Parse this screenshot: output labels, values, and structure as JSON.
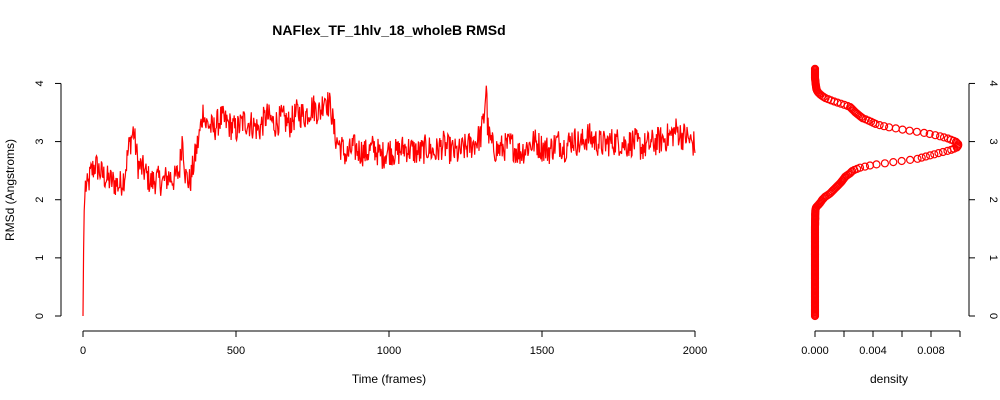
{
  "chart_data": [
    {
      "type": "line",
      "title": "NAFlex_TF_1hlv_18_wholeB RMSd",
      "xlabel": "Time (frames)",
      "ylabel": "RMSd (Angstroms)",
      "xlim": [
        0,
        2000
      ],
      "ylim": [
        0,
        4.3
      ],
      "x_ticks": [
        "0",
        "500",
        "1000",
        "1500",
        "2000"
      ],
      "y_ticks": [
        "0",
        "1",
        "2",
        "3",
        "4"
      ],
      "series": [
        {
          "color": "#ff0000",
          "x": [
            0,
            3,
            8,
            15,
            25,
            40,
            60,
            80,
            100,
            120,
            135,
            150,
            165,
            180,
            200,
            220,
            240,
            260,
            280,
            300,
            315,
            325,
            335,
            350,
            365,
            380,
            395,
            400,
            410,
            425,
            450,
            475,
            500,
            525,
            550,
            575,
            600,
            625,
            650,
            675,
            700,
            725,
            750,
            775,
            790,
            800,
            810,
            820,
            830,
            845,
            860,
            870,
            880,
            900,
            925,
            950,
            975,
            1000,
            1025,
            1050,
            1075,
            1100,
            1125,
            1150,
            1175,
            1200,
            1225,
            1250,
            1275,
            1300,
            1310,
            1318,
            1322,
            1326,
            1332,
            1340,
            1355,
            1375,
            1400,
            1425,
            1450,
            1475,
            1500,
            1525,
            1550,
            1575,
            1600,
            1625,
            1650,
            1675,
            1700,
            1725,
            1750,
            1775,
            1800,
            1825,
            1850,
            1875,
            1900,
            1920,
            1940,
            1955,
            1970,
            1985,
            2000
          ],
          "values": [
            0.0,
            1.7,
            2.25,
            2.2,
            2.45,
            2.6,
            2.45,
            2.35,
            2.3,
            2.25,
            2.4,
            2.9,
            3.2,
            2.6,
            2.5,
            2.3,
            2.35,
            2.3,
            2.4,
            2.35,
            2.5,
            3.1,
            2.4,
            2.3,
            2.7,
            3.1,
            3.6,
            3.3,
            3.3,
            3.2,
            3.4,
            3.3,
            3.2,
            3.35,
            3.3,
            3.2,
            3.45,
            3.3,
            3.4,
            3.3,
            3.5,
            3.45,
            3.6,
            3.5,
            3.8,
            3.65,
            3.6,
            3.2,
            3.0,
            2.9,
            2.75,
            2.8,
            2.9,
            2.85,
            2.8,
            2.9,
            2.75,
            2.85,
            2.8,
            2.9,
            2.85,
            2.8,
            2.9,
            2.8,
            2.95,
            2.85,
            2.8,
            2.9,
            2.95,
            3.1,
            3.4,
            4.0,
            3.3,
            3.1,
            3.0,
            2.9,
            2.85,
            2.9,
            2.95,
            2.8,
            2.9,
            3.0,
            2.9,
            2.85,
            3.0,
            2.9,
            3.05,
            2.95,
            3.1,
            3.0,
            2.95,
            3.0,
            3.0,
            2.95,
            3.0,
            2.9,
            2.95,
            3.0,
            3.05,
            3.1,
            3.2,
            3.1,
            3.1,
            3.0,
            2.95
          ]
        }
      ]
    },
    {
      "type": "scatter",
      "xlabel": "density",
      "ylabel": "",
      "xlim": [
        0,
        0.01
      ],
      "ylim": [
        0,
        4.3
      ],
      "x_ticks": [
        "0.000",
        "0.004",
        "0.008"
      ],
      "y_ticks": [
        "0",
        "1",
        "2",
        "3",
        "4"
      ],
      "series": [
        {
          "color": "#ff0000",
          "marker": "open-circle",
          "x": [
            0.0,
            0.0,
            0.0,
            0.0,
            2e-05,
            5e-05,
            0.0001,
            0.0002,
            0.0003,
            0.0004,
            0.0005,
            0.0007,
            0.001,
            0.0014,
            0.0018,
            0.0021,
            0.0024,
            0.0026,
            0.0031,
            0.004,
            0.0055,
            0.007,
            0.0085,
            0.0093,
            0.0098,
            0.0099,
            0.0097,
            0.0092,
            0.0085,
            0.0075,
            0.0062,
            0.005,
            0.0042,
            0.0038,
            0.0033,
            0.0028,
            0.0026,
            0.0024,
            0.0018,
            0.0012,
            0.0007,
            0.0004,
            0.0002,
            0.0001,
            4e-05,
            0.0,
            0.0
          ],
          "y": [
            0.0,
            0.5,
            1.0,
            1.5,
            1.8,
            1.85,
            1.88,
            1.9,
            1.93,
            1.96,
            2.0,
            2.05,
            2.1,
            2.2,
            2.3,
            2.4,
            2.45,
            2.5,
            2.55,
            2.6,
            2.65,
            2.7,
            2.8,
            2.85,
            2.9,
            2.95,
            3.0,
            3.05,
            3.1,
            3.15,
            3.2,
            3.25,
            3.3,
            3.35,
            3.4,
            3.5,
            3.55,
            3.6,
            3.65,
            3.7,
            3.75,
            3.8,
            3.85,
            3.9,
            4.0,
            4.1,
            4.25
          ]
        }
      ]
    }
  ]
}
